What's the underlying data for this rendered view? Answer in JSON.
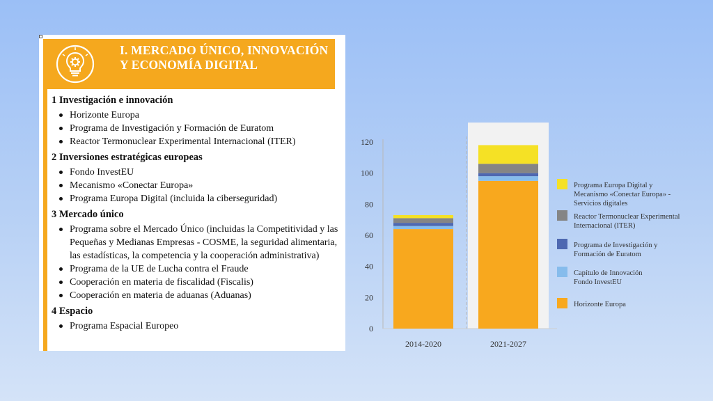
{
  "panel": {
    "title": "I. MERCADO ÚNICO, INNOVACIÓN Y ECONOMÍA DIGITAL",
    "icon": "lightbulb-gear-icon",
    "accent_color": "#f5a81e",
    "sections": [
      {
        "title": "1 Investigación e innovación",
        "items": [
          "Horizonte Europa",
          "Programa de Investigación y Formación de Euratom",
          "Reactor Termonuclear Experimental Internacional (ITER)"
        ]
      },
      {
        "title": "2 Inversiones estratégicas europeas",
        "items": [
          "Fondo InvestEU",
          "Mecanismo «Conectar Europa»",
          "Programa Europa Digital (incluida la ciberseguridad)"
        ]
      },
      {
        "title": "3 Mercado único",
        "items": [
          "Programa sobre el Mercado Único (incluidas la Competitividad y las Pequeñas y Medianas Empresas - COSME, la seguridad alimentaria, las estadísticas, la competencia y la cooperación administrativa)",
          "Programa de la UE de Lucha contra el Fraude",
          "Cooperación en materia de fiscalidad (Fiscalis)",
          "Cooperación en materia de aduanas (Aduanas)"
        ]
      },
      {
        "title": "4 Espacio",
        "items": [
          "Programa Espacial Europeo"
        ]
      }
    ]
  },
  "chart_data": {
    "type": "bar",
    "stacked": true,
    "categories": [
      "2014-2020",
      "2021-2027"
    ],
    "series": [
      {
        "name": "Horizonte Europa",
        "color": "#f8a81e",
        "values": [
          64,
          95
        ]
      },
      {
        "name": "Capítulo de Innovación Fondo InvestEU",
        "color": "#86bcec",
        "values": [
          2,
          3
        ]
      },
      {
        "name": "Programa de Investigación y Formación de Euratom",
        "color": "#4e68b1",
        "values": [
          2,
          2
        ]
      },
      {
        "name": "Reactor Termonuclear Experimental Internacional (ITER)",
        "color": "#858585",
        "values": [
          3,
          6
        ]
      },
      {
        "name": "Programa Europa Digital y Mecanismo «Conectar Europa» - Servicios digitales",
        "color": "#f5e125",
        "values": [
          2,
          12
        ]
      }
    ],
    "legend_order": [
      4,
      3,
      2,
      1,
      0
    ],
    "legend_position": "right",
    "yticks": [
      0,
      20,
      40,
      60,
      80,
      100,
      120
    ],
    "ylim": [
      0,
      120
    ],
    "highlight_category": "2021-2027",
    "highlight_color": "#f2f2f2",
    "separator": "dashed"
  }
}
